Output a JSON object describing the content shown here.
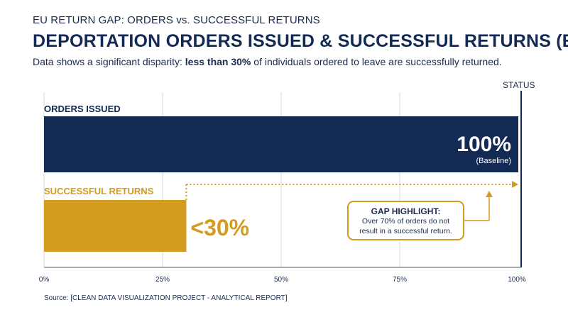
{
  "kicker": "EU RETURN GAP: ORDERS vs. SUCCESSFUL RETURNS",
  "title": "DEPORTATION ORDERS ISSUED & SUCCESSFUL RETURNS (EU)",
  "subtitle": {
    "before": "Data shows a significant disparity: ",
    "bold": "less than 30%",
    "after": " of individuals ordered to leave are successfully returned."
  },
  "status_label": "STATUS",
  "source": "Source: [CLEAN DATA VISUALIZATION PROJECT - ANALYTICAL REPORT]",
  "gap_highlight": {
    "title": "GAP HIGHLIGHT:",
    "line1": "Over 70% of orders do not",
    "line2": "result in a successful return."
  },
  "colors": {
    "navy": "#132a55",
    "gold": "#d39b1f",
    "grid": "#d9d9d9",
    "text": "#1b2a4e"
  },
  "chart_data": {
    "type": "bar",
    "orientation": "horizontal",
    "categories": [
      "ORDERS ISSUED",
      "SUCCESSFUL RETURNS"
    ],
    "values": [
      100,
      30
    ],
    "value_labels": [
      "100%",
      "<30%"
    ],
    "value_sublabels": [
      "(Baseline)",
      ""
    ],
    "xlim": [
      0,
      100
    ],
    "xticks": [
      0,
      25,
      50,
      75,
      100
    ],
    "xtick_labels": [
      "0%",
      "25%",
      "50%",
      "75%",
      "100%"
    ],
    "grid": true,
    "annotation": "dotted gap line from 30% to 100%"
  }
}
